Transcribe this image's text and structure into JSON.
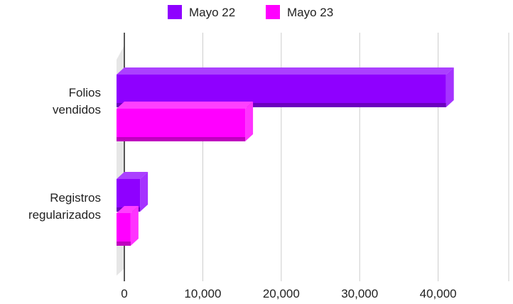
{
  "chart_data": {
    "type": "bar",
    "orientation": "horizontal",
    "style": "3d",
    "categories": [
      "Folios vendidos",
      "Registros regularizados"
    ],
    "category_lines": [
      [
        "Folios",
        "vendidos"
      ],
      [
        "Registros",
        "regularizados"
      ]
    ],
    "series": [
      {
        "name": "Mayo 22",
        "values": [
          42000,
          3000
        ],
        "color": "#8F00FF"
      },
      {
        "name": "Mayo 23",
        "values": [
          16400,
          1800
        ],
        "color": "#FF00FF"
      }
    ],
    "xlim": [
      0,
      49000
    ],
    "x_ticks": [
      0,
      10000,
      20000,
      30000,
      40000
    ],
    "x_tick_labels": [
      "0",
      "10,000",
      "20,000",
      "30,000",
      "40,000"
    ],
    "grid": true,
    "legend_position": "top"
  }
}
